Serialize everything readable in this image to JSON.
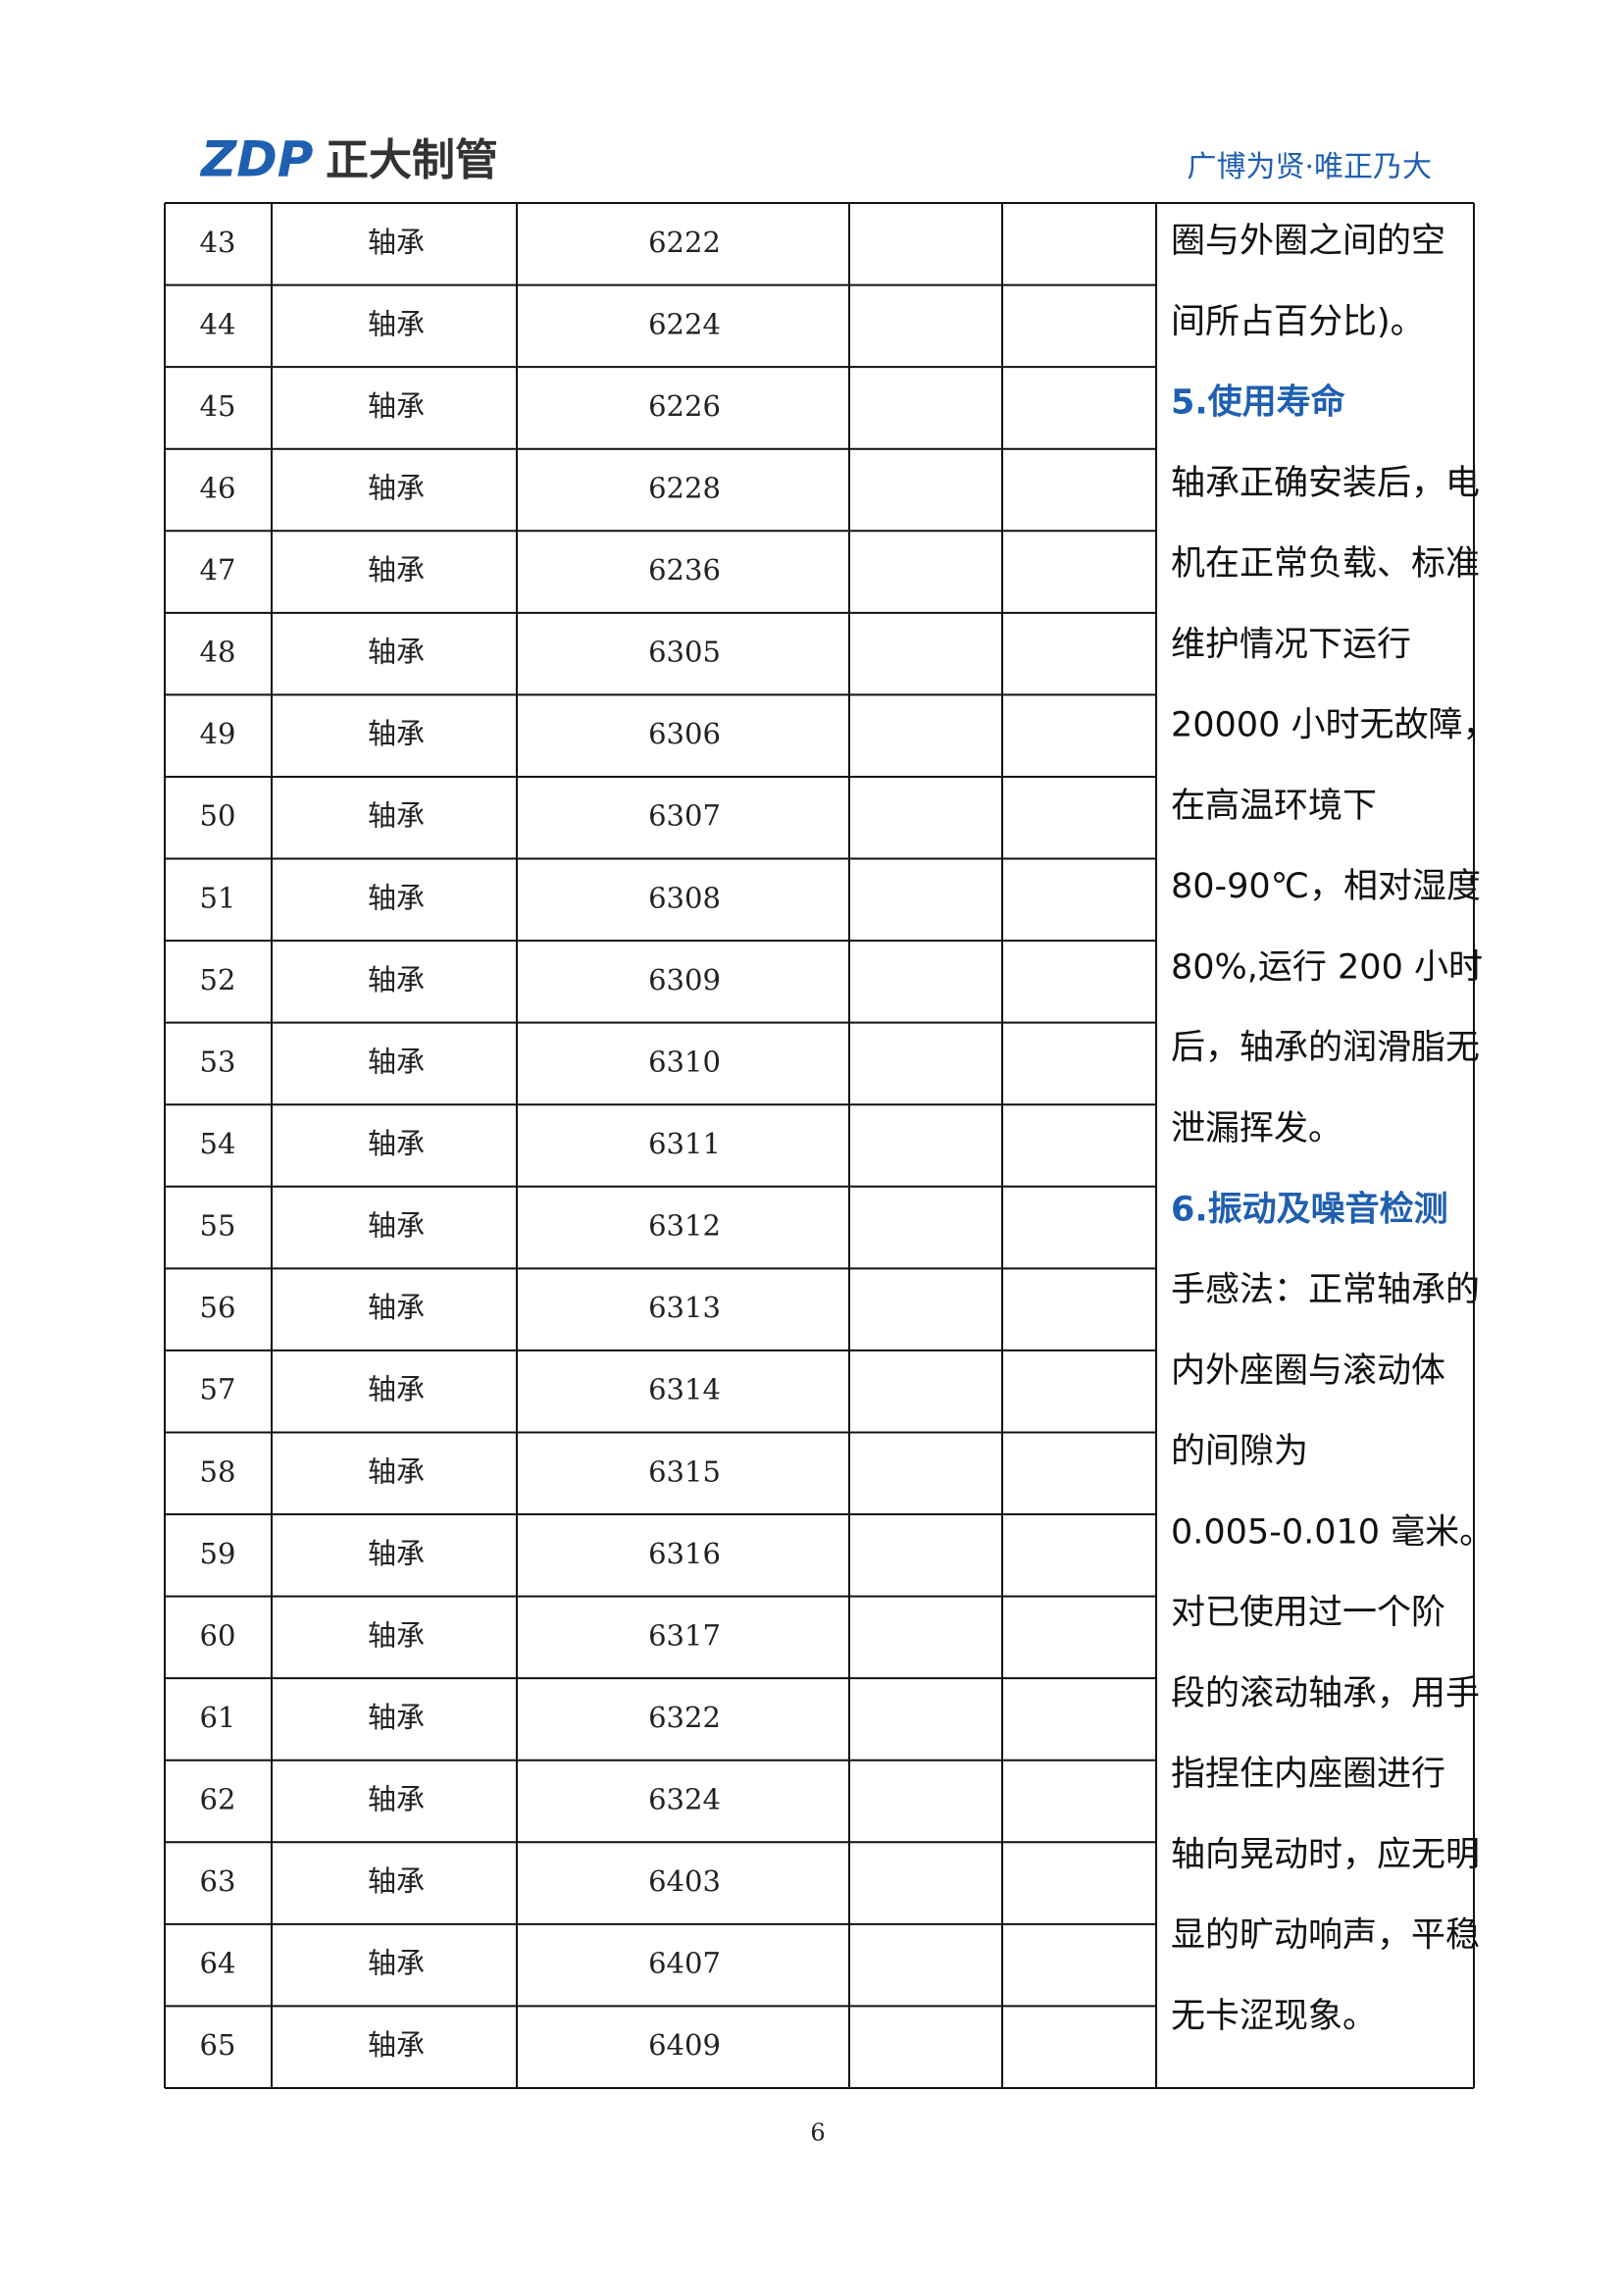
{
  "header": {
    "logo_mark": "ZDP",
    "logo_text": "正大制管",
    "slogan": "广博为贤·唯正乃大"
  },
  "table": {
    "rows": [
      [
        "43",
        "轴承",
        "6222"
      ],
      [
        "44",
        "轴承",
        "6224"
      ],
      [
        "45",
        "轴承",
        "6226"
      ],
      [
        "46",
        "轴承",
        "6228"
      ],
      [
        "47",
        "轴承",
        "6236"
      ],
      [
        "48",
        "轴承",
        "6305"
      ],
      [
        "49",
        "轴承",
        "6306"
      ],
      [
        "50",
        "轴承",
        "6307"
      ],
      [
        "51",
        "轴承",
        "6308"
      ],
      [
        "52",
        "轴承",
        "6309"
      ],
      [
        "53",
        "轴承",
        "6310"
      ],
      [
        "54",
        "轴承",
        "6311"
      ],
      [
        "55",
        "轴承",
        "6312"
      ],
      [
        "56",
        "轴承",
        "6313"
      ],
      [
        "57",
        "轴承",
        "6314"
      ],
      [
        "58",
        "轴承",
        "6315"
      ],
      [
        "59",
        "轴承",
        "6316"
      ],
      [
        "60",
        "轴承",
        "6317"
      ],
      [
        "61",
        "轴承",
        "6322"
      ],
      [
        "62",
        "轴承",
        "6324"
      ],
      [
        "63",
        "轴承",
        "6403"
      ],
      [
        "64",
        "轴承",
        "6407"
      ],
      [
        "65",
        "轴承",
        "6409"
      ]
    ],
    "side_column": [
      {
        "kind": "text",
        "text": "圈与外圈之间的空"
      },
      {
        "kind": "text",
        "text": "间所占百分比)。"
      },
      {
        "kind": "heading",
        "text": "5.使用寿命"
      },
      {
        "kind": "text",
        "text": "轴承正确安装后，电"
      },
      {
        "kind": "text",
        "text": "机在正常负载、标准"
      },
      {
        "kind": "text",
        "text": "维护情况下运行"
      },
      {
        "kind": "text",
        "text": "20000 小时无故障，"
      },
      {
        "kind": "text",
        "text": "在高温环境下"
      },
      {
        "kind": "text",
        "text": "80-90℃，相对湿度"
      },
      {
        "kind": "text",
        "text": "80%,运行 200 小时"
      },
      {
        "kind": "text",
        "text": "后，轴承的润滑脂无"
      },
      {
        "kind": "text",
        "text": "泄漏挥发。"
      },
      {
        "kind": "heading",
        "text": "6.振动及噪音检测"
      },
      {
        "kind": "text",
        "text": "手感法：正常轴承的"
      },
      {
        "kind": "text",
        "text": "内外座圈与滚动体"
      },
      {
        "kind": "text",
        "text": "的间隙为"
      },
      {
        "kind": "text",
        "text": "0.005-0.010 毫米。"
      },
      {
        "kind": "text",
        "text": "对已使用过一个阶"
      },
      {
        "kind": "text",
        "text": "段的滚动轴承，用手"
      },
      {
        "kind": "text",
        "text": "指捏住内座圈进行"
      },
      {
        "kind": "text",
        "text": "轴向晃动时，应无明"
      },
      {
        "kind": "text",
        "text": "显的旷动响声，平稳"
      },
      {
        "kind": "text",
        "text": "无卡涩现象。"
      }
    ]
  },
  "footer": {
    "page_number": "6"
  }
}
